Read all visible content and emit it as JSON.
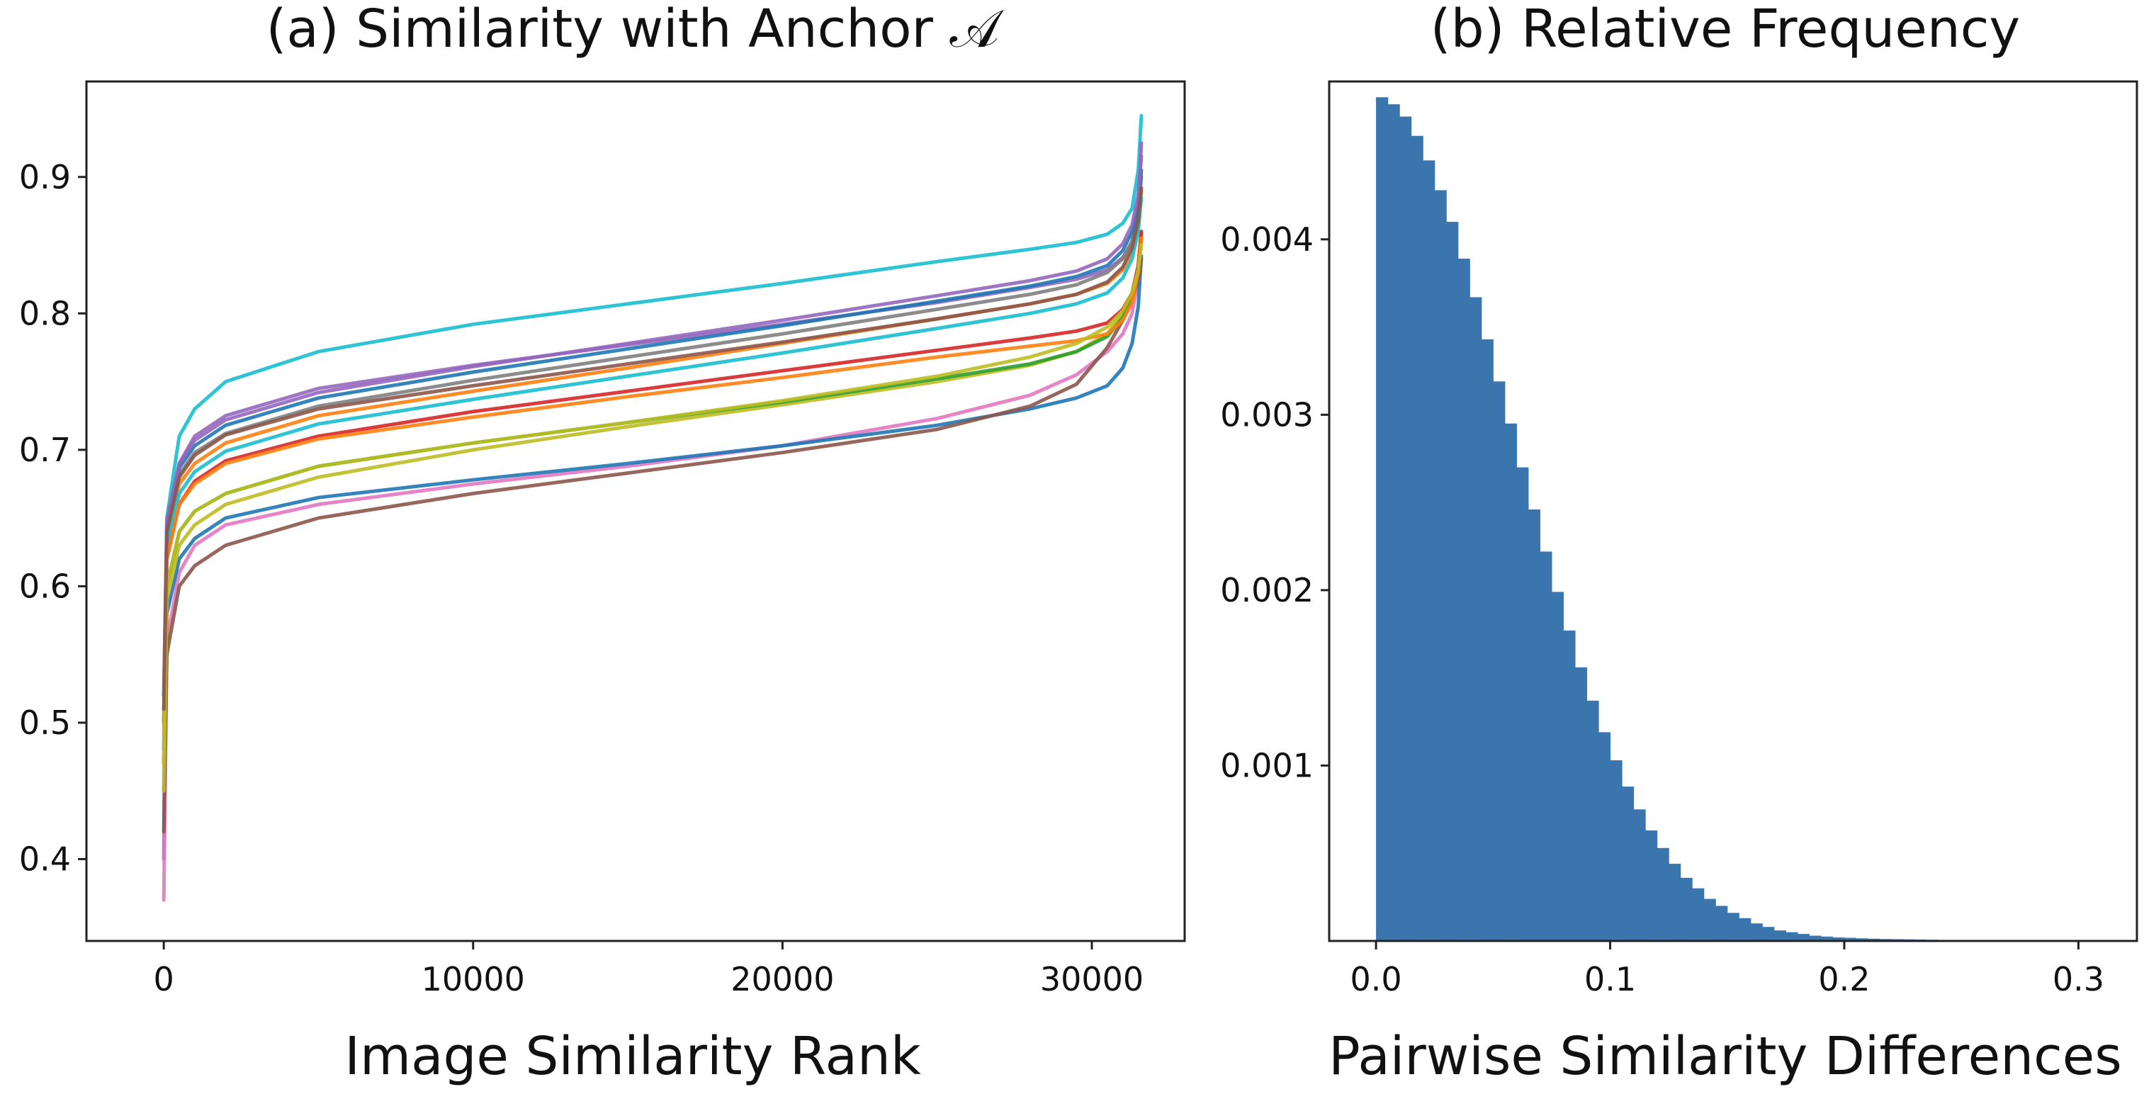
{
  "chart_data": [
    {
      "type": "line",
      "title": "(a) Similarity with Anchor 𝒜",
      "xlabel": "Image Similarity Rank",
      "ylabel": "",
      "xlim": [
        -2500,
        33000
      ],
      "ylim": [
        0.34,
        0.97
      ],
      "xticks": [
        0,
        10000,
        20000,
        30000
      ],
      "xtick_labels": [
        "0",
        "10000",
        "20000",
        "30000"
      ],
      "yticks": [
        0.4,
        0.5,
        0.6,
        0.7,
        0.8,
        0.9
      ],
      "ytick_labels": [
        "0.4",
        "0.5",
        "0.6",
        "0.7",
        "0.8",
        "0.9"
      ],
      "grid": false,
      "legend": "none",
      "x": [
        0,
        100,
        500,
        1000,
        2000,
        5000,
        10000,
        15000,
        20000,
        25000,
        28000,
        29500,
        30500,
        31000,
        31300,
        31500,
        31600
      ],
      "series": [
        {
          "color": "#17becf",
          "values": [
            0.42,
            0.65,
            0.71,
            0.73,
            0.75,
            0.772,
            0.792,
            0.807,
            0.822,
            0.838,
            0.847,
            0.852,
            0.858,
            0.866,
            0.877,
            0.905,
            0.945
          ]
        },
        {
          "color": "#9467bd",
          "values": [
            0.4,
            0.63,
            0.69,
            0.71,
            0.725,
            0.745,
            0.762,
            0.777,
            0.792,
            0.808,
            0.819,
            0.825,
            0.832,
            0.841,
            0.852,
            0.875,
            0.925
          ]
        },
        {
          "color": "#e377c2",
          "values": [
            0.37,
            0.56,
            0.61,
            0.63,
            0.645,
            0.66,
            0.675,
            0.688,
            0.703,
            0.723,
            0.74,
            0.755,
            0.772,
            0.785,
            0.8,
            0.825,
            0.86
          ]
        },
        {
          "color": "#1f77b4",
          "values": [
            0.45,
            0.58,
            0.62,
            0.635,
            0.65,
            0.665,
            0.678,
            0.69,
            0.703,
            0.718,
            0.73,
            0.738,
            0.747,
            0.76,
            0.778,
            0.805,
            0.842
          ]
        },
        {
          "color": "#8c564b",
          "values": [
            0.42,
            0.55,
            0.6,
            0.615,
            0.63,
            0.65,
            0.668,
            0.683,
            0.698,
            0.715,
            0.732,
            0.748,
            0.775,
            0.795,
            0.81,
            0.825,
            0.84
          ]
        },
        {
          "color": "#bcbd22",
          "values": [
            0.45,
            0.59,
            0.63,
            0.645,
            0.66,
            0.68,
            0.7,
            0.717,
            0.733,
            0.75,
            0.762,
            0.772,
            0.785,
            0.8,
            0.815,
            0.835,
            0.86
          ]
        },
        {
          "color": "#2ca02c",
          "values": [
            0.47,
            0.6,
            0.64,
            0.655,
            0.668,
            0.688,
            0.705,
            0.72,
            0.735,
            0.752,
            0.763,
            0.772,
            0.783,
            0.797,
            0.812,
            0.832,
            0.855
          ]
        },
        {
          "color": "#d62728",
          "values": [
            0.48,
            0.62,
            0.66,
            0.677,
            0.692,
            0.71,
            0.728,
            0.743,
            0.758,
            0.773,
            0.782,
            0.787,
            0.793,
            0.803,
            0.815,
            0.835,
            0.86
          ]
        },
        {
          "color": "#ff7f0e",
          "values": [
            0.5,
            0.635,
            0.675,
            0.69,
            0.705,
            0.725,
            0.743,
            0.76,
            0.778,
            0.796,
            0.807,
            0.814,
            0.822,
            0.832,
            0.845,
            0.865,
            0.89
          ]
        },
        {
          "color": "#7f7f7f",
          "values": [
            0.5,
            0.64,
            0.682,
            0.698,
            0.712,
            0.732,
            0.751,
            0.768,
            0.785,
            0.803,
            0.814,
            0.821,
            0.83,
            0.84,
            0.853,
            0.873,
            0.9
          ]
        },
        {
          "color": "#17becf",
          "values": [
            0.48,
            0.628,
            0.668,
            0.684,
            0.699,
            0.719,
            0.737,
            0.754,
            0.771,
            0.789,
            0.8,
            0.807,
            0.815,
            0.826,
            0.84,
            0.86,
            0.885
          ]
        },
        {
          "color": "#1f77b4",
          "values": [
            0.52,
            0.645,
            0.687,
            0.703,
            0.718,
            0.738,
            0.757,
            0.774,
            0.791,
            0.809,
            0.82,
            0.827,
            0.835,
            0.846,
            0.86,
            0.88,
            0.905
          ]
        },
        {
          "color": "#9467bd",
          "values": [
            0.52,
            0.648,
            0.69,
            0.707,
            0.722,
            0.742,
            0.761,
            0.778,
            0.795,
            0.813,
            0.824,
            0.831,
            0.84,
            0.851,
            0.865,
            0.887,
            0.915
          ]
        },
        {
          "color": "#ff7f0e",
          "values": [
            0.47,
            0.62,
            0.66,
            0.675,
            0.69,
            0.708,
            0.724,
            0.739,
            0.753,
            0.768,
            0.776,
            0.78,
            0.785,
            0.795,
            0.808,
            0.83,
            0.855
          ]
        },
        {
          "color": "#bcbd22",
          "values": [
            0.47,
            0.6,
            0.64,
            0.655,
            0.668,
            0.688,
            0.705,
            0.72,
            0.736,
            0.754,
            0.768,
            0.778,
            0.79,
            0.802,
            0.815,
            0.832,
            0.85
          ]
        },
        {
          "color": "#8c564b",
          "values": [
            0.51,
            0.64,
            0.68,
            0.696,
            0.711,
            0.73,
            0.747,
            0.763,
            0.779,
            0.796,
            0.807,
            0.814,
            0.823,
            0.834,
            0.848,
            0.868,
            0.892
          ]
        }
      ]
    },
    {
      "type": "bar",
      "title": "(b) Relative Frequency",
      "xlabel": "Pairwise Similarity Differences",
      "ylabel": "",
      "xlim": [
        -0.02,
        0.325
      ],
      "ylim": [
        0,
        0.0049
      ],
      "xticks": [
        0.0,
        0.1,
        0.2,
        0.3
      ],
      "xtick_labels": [
        "0.0",
        "0.1",
        "0.2",
        "0.3"
      ],
      "yticks": [
        0.001,
        0.002,
        0.003,
        0.004
      ],
      "ytick_labels": [
        "0.001",
        "0.002",
        "0.003",
        "0.004"
      ],
      "grid": false,
      "legend": "none",
      "bar_color": "#3a76ad",
      "bin_width": 0.005,
      "bin_starts": [
        0.0,
        0.005,
        0.01,
        0.015,
        0.02,
        0.025,
        0.03,
        0.035,
        0.04,
        0.045,
        0.05,
        0.055,
        0.06,
        0.065,
        0.07,
        0.075,
        0.08,
        0.085,
        0.09,
        0.095,
        0.1,
        0.105,
        0.11,
        0.115,
        0.12,
        0.125,
        0.13,
        0.135,
        0.14,
        0.145,
        0.15,
        0.155,
        0.16,
        0.165,
        0.17,
        0.175,
        0.18,
        0.185,
        0.19,
        0.195,
        0.2,
        0.205,
        0.21,
        0.215,
        0.22,
        0.225,
        0.23,
        0.235,
        0.24,
        0.245,
        0.25,
        0.255,
        0.26
      ],
      "values": [
        0.00481,
        0.00477,
        0.0047,
        0.00459,
        0.00445,
        0.00428,
        0.0041,
        0.00389,
        0.00367,
        0.00343,
        0.00319,
        0.00295,
        0.0027,
        0.00246,
        0.00222,
        0.00199,
        0.00177,
        0.00156,
        0.00137,
        0.00119,
        0.00103,
        0.00088,
        0.00075,
        0.00063,
        0.00053,
        0.00044,
        0.00036,
        0.0003,
        0.00024,
        0.0002,
        0.00016,
        0.00013,
        0.0001,
        8e-05,
        6e-05,
        5e-05,
        4e-05,
        3e-05,
        2.5e-05,
        2e-05,
        1.8e-05,
        1.5e-05,
        1.3e-05,
        1.1e-05,
        1e-05,
        9e-06,
        8e-06,
        7e-06,
        6e-06,
        5e-06,
        5e-06,
        4e-06,
        4e-06
      ]
    }
  ]
}
